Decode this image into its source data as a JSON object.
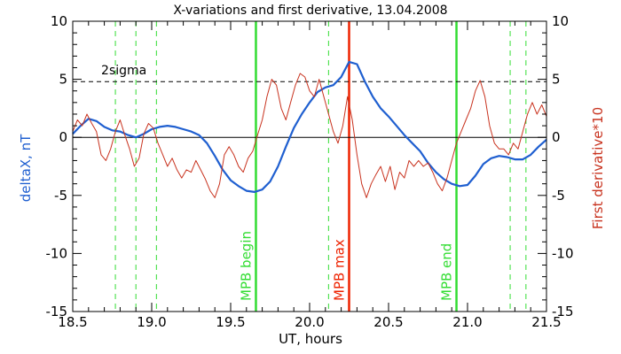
{
  "chart_data": {
    "type": "line",
    "title": "X-variations and first derivative, 13.04.2008",
    "xlabel": "UT, hours",
    "ylabel_left": "deltaX, nT",
    "ylabel_right": "First derivative*10",
    "xlim": [
      18.5,
      21.5
    ],
    "ylim": [
      -15,
      10
    ],
    "x_ticks": [
      "18.5",
      "19.0",
      "19.5",
      "20.0",
      "20.5",
      "21.0",
      "21.5"
    ],
    "y_ticks": [
      "10",
      "5",
      "0",
      "-5",
      "-10",
      "-15"
    ],
    "sigma_level": 4.8,
    "sigma_label": "2sigma",
    "colors": {
      "deltaX": "#1f5fd0",
      "derivative": "#c8321e",
      "mpb_bounds": "#33dd33",
      "mpb_max": "#ee2200",
      "axes": "#000000"
    },
    "markers": {
      "mpb_begin": {
        "x": 19.66,
        "label": "MPB begin"
      },
      "mpb_max": {
        "x": 20.25,
        "label": "MPB max"
      },
      "mpb_end": {
        "x": 20.93,
        "label": "MPB end"
      }
    },
    "dashed_vlines_x": [
      18.77,
      18.9,
      19.03,
      20.12,
      21.27,
      21.37
    ],
    "series": [
      {
        "key": "deltaX",
        "axis": "left",
        "x": [
          18.5,
          18.55,
          18.6,
          18.65,
          18.7,
          18.75,
          18.8,
          18.85,
          18.9,
          18.95,
          19.0,
          19.05,
          19.1,
          19.15,
          19.2,
          19.25,
          19.3,
          19.35,
          19.4,
          19.45,
          19.5,
          19.55,
          19.6,
          19.65,
          19.7,
          19.75,
          19.8,
          19.85,
          19.9,
          19.95,
          20.0,
          20.05,
          20.1,
          20.15,
          20.2,
          20.25,
          20.3,
          20.35,
          20.4,
          20.45,
          20.5,
          20.55,
          20.6,
          20.65,
          20.7,
          20.75,
          20.8,
          20.85,
          20.9,
          20.95,
          21.0,
          21.05,
          21.1,
          21.15,
          21.2,
          21.25,
          21.3,
          21.35,
          21.4,
          21.45,
          21.5
        ],
        "values": [
          0.3,
          1.0,
          1.6,
          1.4,
          0.9,
          0.6,
          0.5,
          0.2,
          0.0,
          0.3,
          0.7,
          0.9,
          1.0,
          0.9,
          0.7,
          0.5,
          0.2,
          -0.5,
          -1.6,
          -2.8,
          -3.7,
          -4.2,
          -4.6,
          -4.7,
          -4.5,
          -3.8,
          -2.5,
          -0.8,
          0.8,
          2.0,
          3.0,
          3.9,
          4.3,
          4.5,
          5.2,
          6.5,
          6.3,
          4.8,
          3.5,
          2.5,
          1.8,
          1.0,
          0.2,
          -0.5,
          -1.2,
          -2.2,
          -3.0,
          -3.6,
          -4.0,
          -4.2,
          -4.1,
          -3.3,
          -2.3,
          -1.8,
          -1.6,
          -1.7,
          -1.9,
          -1.9,
          -1.5,
          -0.8,
          -0.2
        ]
      },
      {
        "key": "derivative",
        "axis": "right",
        "x": [
          18.5,
          18.53,
          18.56,
          18.59,
          18.62,
          18.65,
          18.68,
          18.71,
          18.74,
          18.77,
          18.8,
          18.83,
          18.86,
          18.89,
          18.92,
          18.95,
          18.98,
          19.01,
          19.04,
          19.07,
          19.1,
          19.13,
          19.16,
          19.19,
          19.22,
          19.25,
          19.28,
          19.31,
          19.34,
          19.37,
          19.4,
          19.43,
          19.46,
          19.49,
          19.52,
          19.55,
          19.58,
          19.61,
          19.64,
          19.67,
          19.7,
          19.73,
          19.76,
          19.79,
          19.82,
          19.85,
          19.88,
          19.91,
          19.94,
          19.97,
          20.0,
          20.03,
          20.06,
          20.09,
          20.12,
          20.15,
          20.18,
          20.21,
          20.24,
          20.27,
          20.3,
          20.33,
          20.36,
          20.39,
          20.42,
          20.45,
          20.48,
          20.51,
          20.54,
          20.57,
          20.6,
          20.63,
          20.66,
          20.69,
          20.72,
          20.75,
          20.78,
          20.81,
          20.84,
          20.87,
          20.9,
          20.93,
          20.96,
          20.99,
          21.02,
          21.05,
          21.08,
          21.11,
          21.14,
          21.17,
          21.2,
          21.23,
          21.26,
          21.29,
          21.32,
          21.35,
          21.38,
          21.41,
          21.44,
          21.47,
          21.5
        ],
        "values": [
          0.5,
          1.5,
          1.0,
          2.0,
          1.2,
          0.5,
          -1.5,
          -2.0,
          -1.0,
          0.5,
          1.5,
          0.2,
          -1.0,
          -2.5,
          -1.8,
          0.3,
          1.2,
          0.8,
          -0.5,
          -1.5,
          -2.5,
          -1.8,
          -2.8,
          -3.5,
          -2.8,
          -3.0,
          -2.0,
          -2.8,
          -3.6,
          -4.6,
          -5.2,
          -4.0,
          -1.5,
          -0.8,
          -1.5,
          -2.5,
          -3.0,
          -1.8,
          -1.2,
          0.2,
          1.5,
          3.5,
          5.0,
          4.5,
          2.5,
          1.5,
          3.0,
          4.5,
          5.5,
          5.2,
          4.0,
          3.5,
          5.0,
          3.5,
          2.0,
          0.5,
          -0.5,
          1.0,
          3.5,
          1.5,
          -1.5,
          -4.0,
          -5.2,
          -4.0,
          -3.2,
          -2.5,
          -3.8,
          -2.5,
          -4.5,
          -3.0,
          -3.5,
          -2.0,
          -2.5,
          -2.0,
          -2.5,
          -2.2,
          -3.0,
          -4.0,
          -4.6,
          -3.5,
          -2.0,
          -0.5,
          0.5,
          1.5,
          2.5,
          4.0,
          4.9,
          3.5,
          1.0,
          -0.5,
          -1.0,
          -1.0,
          -1.5,
          -0.5,
          -1.0,
          0.5,
          2.0,
          3.0,
          2.0,
          2.8,
          1.8
        ]
      }
    ]
  }
}
